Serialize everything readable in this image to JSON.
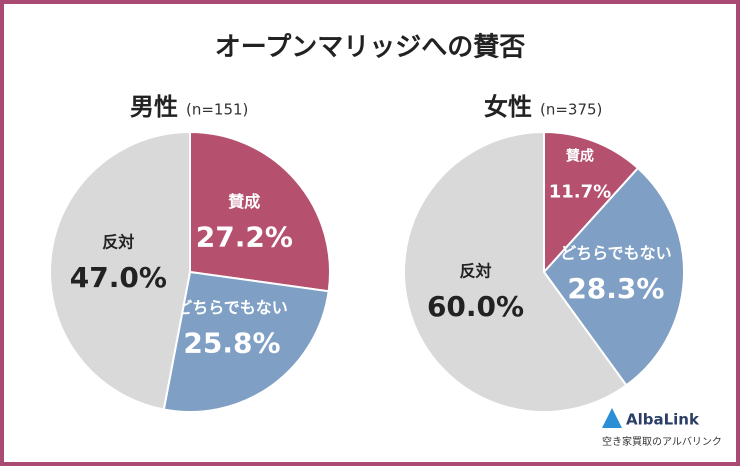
{
  "title": "オープンマリッジへの賛否",
  "chart_data": [
    {
      "type": "pie",
      "title": "男性",
      "subtitle": "(n=151)",
      "categories": [
        "賛成",
        "どちらでもない",
        "反対"
      ],
      "values": [
        27.2,
        25.8,
        47.0
      ],
      "value_labels": [
        "27.2%",
        "25.8%",
        "47.0%"
      ],
      "colors": [
        "#b5506f",
        "#7f9fc4",
        "#d9d9d9"
      ]
    },
    {
      "type": "pie",
      "title": "女性",
      "subtitle": "(n=375)",
      "categories": [
        "賛成",
        "どちらでもない",
        "反対"
      ],
      "values": [
        11.7,
        28.3,
        60.0
      ],
      "value_labels": [
        "11.7%",
        "28.3%",
        "60.0%"
      ],
      "colors": [
        "#b5506f",
        "#7f9fc4",
        "#d9d9d9"
      ]
    }
  ],
  "logo": {
    "name": "AlbaLink",
    "tagline": "空き家買取のアルバリンク"
  }
}
